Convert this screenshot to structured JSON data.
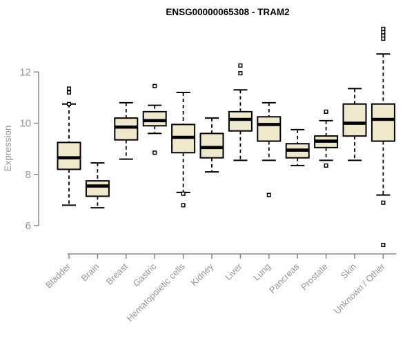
{
  "chart_data": {
    "type": "boxplot",
    "title": "ENSG00000065308 - TRAM2",
    "ylabel": "Expression",
    "xlabel": "",
    "legend": null,
    "grid": false,
    "yaxis": {
      "ticks": [
        6,
        8,
        10,
        12
      ],
      "range_shown": [
        4.9,
        14.0
      ]
    },
    "categories": [
      "Bladder",
      "Brain",
      "Breast",
      "Gastric",
      "Hematopoietic cells",
      "Kidney",
      "Liver",
      "Lung",
      "Pancreas",
      "Prostate",
      "Skin",
      "Unknown / Other"
    ],
    "boxes": [
      {
        "category": "Bladder",
        "whisker_low": 6.8,
        "q1": 8.2,
        "median": 8.65,
        "q3": 9.25,
        "whisker_high": 10.75,
        "outliers": [
          10.75,
          11.2,
          11.35
        ]
      },
      {
        "category": "Brain",
        "whisker_low": 6.7,
        "q1": 7.15,
        "median": 7.55,
        "q3": 7.75,
        "whisker_high": 8.45,
        "outliers": []
      },
      {
        "category": "Breast",
        "whisker_low": 8.6,
        "q1": 9.35,
        "median": 9.85,
        "q3": 10.2,
        "whisker_high": 10.8,
        "outliers": []
      },
      {
        "category": "Gastric",
        "whisker_low": 9.6,
        "q1": 9.9,
        "median": 10.1,
        "q3": 10.45,
        "whisker_high": 10.7,
        "outliers": [
          11.45,
          8.85
        ]
      },
      {
        "category": "Hematopoietic cells",
        "whisker_low": 7.3,
        "q1": 8.85,
        "median": 9.45,
        "q3": 9.95,
        "whisker_high": 11.2,
        "outliers": [
          7.25,
          6.8
        ]
      },
      {
        "category": "Kidney",
        "whisker_low": 8.1,
        "q1": 8.65,
        "median": 9.05,
        "q3": 9.6,
        "whisker_high": 10.2,
        "outliers": []
      },
      {
        "category": "Liver",
        "whisker_low": 8.55,
        "q1": 9.7,
        "median": 10.15,
        "q3": 10.45,
        "whisker_high": 11.3,
        "outliers": [
          11.95,
          12.25
        ]
      },
      {
        "category": "Lung",
        "whisker_low": 8.55,
        "q1": 9.3,
        "median": 9.95,
        "q3": 10.25,
        "whisker_high": 10.8,
        "outliers": [
          7.2
        ]
      },
      {
        "category": "Pancreas",
        "whisker_low": 8.35,
        "q1": 8.65,
        "median": 8.95,
        "q3": 9.2,
        "whisker_high": 9.75,
        "outliers": []
      },
      {
        "category": "Prostate",
        "whisker_low": 8.55,
        "q1": 9.05,
        "median": 9.3,
        "q3": 9.5,
        "whisker_high": 10.1,
        "outliers": [
          10.45,
          8.35
        ]
      },
      {
        "category": "Skin",
        "whisker_low": 8.55,
        "q1": 9.5,
        "median": 10.0,
        "q3": 10.75,
        "whisker_high": 11.35,
        "outliers": []
      },
      {
        "category": "Unknown / Other",
        "whisker_low": 7.2,
        "q1": 9.3,
        "median": 10.15,
        "q3": 10.75,
        "whisker_high": 12.7,
        "outliers": [
          13.68,
          13.55,
          13.42,
          13.3,
          6.9,
          5.25
        ]
      }
    ],
    "style": {
      "box_fill": "#EEE8CD",
      "box_stroke": "#000000",
      "median_color": "#000000",
      "whisker_color": "#000000",
      "outlier_fill": "#FFFFFF",
      "outlier_stroke": "#000000",
      "axis_color": "#878787",
      "tick_label_color": "#969696",
      "title_color": "#000000",
      "background": "#FFFFFF"
    }
  }
}
